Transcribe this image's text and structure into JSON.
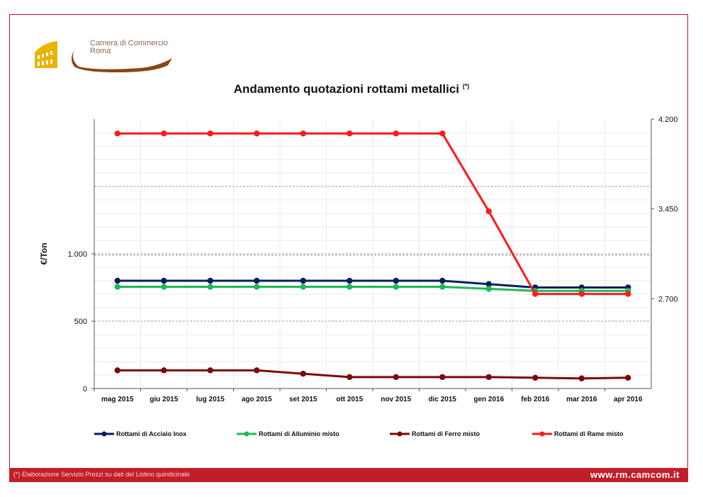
{
  "logo": {
    "line1": "Camera di Commercio",
    "line2": "Roma"
  },
  "title": {
    "main": "Andamento quotazioni rottami metallici",
    "superscript": "(*)"
  },
  "footer": {
    "note": "(*) Elaborazione Servizio Prezzi su dati del Listino quindicinale",
    "url": "www.rm.camcom.it",
    "color": "#c21e2a"
  },
  "chart_data": {
    "type": "line",
    "ylabel": "€/Ton",
    "categories": [
      "mag 2015",
      "giu 2015",
      "lug 2015",
      "ago 2015",
      "set 2015",
      "ott 2015",
      "nov 2015",
      "dic 2015",
      "gen 2016",
      "feb 2016",
      "mar 2016",
      "apr 2016"
    ],
    "y_left": {
      "ylim": [
        0,
        2000
      ],
      "ticks": [
        0,
        500,
        1000
      ],
      "tick_labels": [
        "0",
        "500",
        "1.000"
      ]
    },
    "y_right": {
      "ylim": [
        1950,
        4200
      ],
      "ticks": [
        2700,
        3450,
        4200
      ],
      "tick_labels": [
        "2.700",
        "3.450",
        "4.200"
      ]
    },
    "grid": true,
    "legend_position": "bottom",
    "series": [
      {
        "name": "Rottami di Acciaio Inox",
        "axis": "left",
        "color": "#0d1b5e",
        "values": [
          800,
          800,
          800,
          800,
          800,
          800,
          800,
          800,
          775,
          750,
          750,
          750
        ]
      },
      {
        "name": "Rottami di Alluminio misto",
        "axis": "left",
        "color": "#1db954",
        "values": [
          755,
          755,
          755,
          755,
          755,
          755,
          755,
          755,
          740,
          725,
          725,
          725
        ]
      },
      {
        "name": "Rottami di Ferro misto",
        "axis": "left",
        "color": "#7a0a0a",
        "values": [
          135,
          135,
          135,
          135,
          110,
          85,
          85,
          85,
          85,
          80,
          75,
          80
        ]
      },
      {
        "name": "Rottami di Rame misto",
        "axis": "right",
        "color": "#ff1a1a",
        "values": [
          4080,
          4080,
          4080,
          4080,
          4080,
          4080,
          4080,
          4080,
          3430,
          2740,
          2740,
          2740
        ]
      }
    ]
  }
}
